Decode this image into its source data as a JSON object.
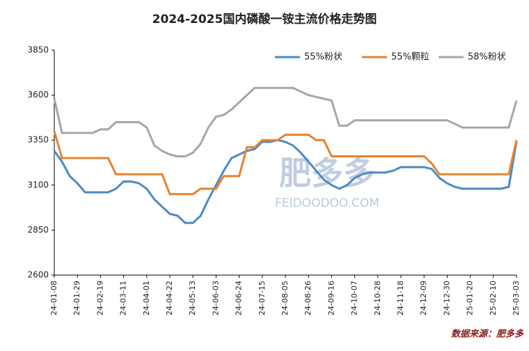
{
  "chart_data": {
    "type": "line",
    "title": "2024-2025国内磷酸一铵主流价格走势图",
    "categories": [
      "24-01-08",
      null,
      null,
      "24-01-29",
      null,
      null,
      "24-02-19",
      null,
      null,
      "24-03-11",
      null,
      null,
      "24-04-01",
      null,
      null,
      "24-04-22",
      null,
      null,
      "24-05-13",
      null,
      null,
      "24-06-03",
      null,
      null,
      "24-06-24",
      null,
      null,
      "24-07-15",
      null,
      null,
      "24-08-05",
      null,
      null,
      "24-08-26",
      null,
      null,
      "24-09-16",
      null,
      null,
      "24-10-07",
      null,
      null,
      "24-10-28",
      null,
      null,
      "24-11-18",
      null,
      null,
      "24-12-09",
      null,
      null,
      "24-12-30",
      null,
      null,
      "25-01-20",
      null,
      null,
      "25-02-10",
      null,
      null,
      "25-03-03"
    ],
    "series": [
      {
        "name": "55%粉状",
        "color": "#4a8ac4",
        "values": [
          3290,
          3230,
          3150,
          3110,
          3060,
          3060,
          3060,
          3060,
          3080,
          3120,
          3120,
          3110,
          3080,
          3020,
          2980,
          2940,
          2930,
          2890,
          2890,
          2930,
          3020,
          3100,
          3180,
          3250,
          3270,
          3290,
          3300,
          3340,
          3340,
          3350,
          3340,
          3320,
          3280,
          3230,
          3180,
          3130,
          3100,
          3080,
          3100,
          3140,
          3160,
          3170,
          3170,
          3170,
          3180,
          3200,
          3200,
          3200,
          3200,
          3190,
          3140,
          3110,
          3090,
          3080,
          3080,
          3080,
          3080,
          3080,
          3080,
          3090,
          3340
        ]
      },
      {
        "name": "55%颗粒",
        "color": "#e8822e",
        "values": [
          3400,
          3250,
          3250,
          3250,
          3250,
          3250,
          3250,
          3250,
          3160,
          3160,
          3160,
          3160,
          3160,
          3160,
          3160,
          3050,
          3050,
          3050,
          3050,
          3080,
          3080,
          3080,
          3150,
          3150,
          3150,
          3310,
          3310,
          3350,
          3350,
          3350,
          3380,
          3380,
          3380,
          3380,
          3350,
          3350,
          3260,
          3260,
          3260,
          3260,
          3260,
          3260,
          3260,
          3260,
          3260,
          3260,
          3260,
          3260,
          3260,
          3220,
          3160,
          3160,
          3160,
          3160,
          3160,
          3160,
          3160,
          3160,
          3160,
          3160,
          3350
        ]
      },
      {
        "name": "58%粉状",
        "color": "#a6a6a6",
        "values": [
          3580,
          3390,
          3390,
          3390,
          3390,
          3390,
          3410,
          3410,
          3450,
          3450,
          3450,
          3450,
          3420,
          3320,
          3290,
          3270,
          3260,
          3260,
          3280,
          3330,
          3420,
          3480,
          3490,
          3520,
          3560,
          3600,
          3640,
          3640,
          3640,
          3640,
          3640,
          3640,
          3620,
          3600,
          3590,
          3580,
          3570,
          3430,
          3430,
          3460,
          3460,
          3460,
          3460,
          3460,
          3460,
          3460,
          3460,
          3460,
          3460,
          3460,
          3460,
          3460,
          3440,
          3420,
          3420,
          3420,
          3420,
          3420,
          3420,
          3420,
          3570
        ]
      }
    ],
    "ylim": [
      2600,
      3850
    ],
    "yticks": [
      2600,
      2850,
      3100,
      3350,
      3600,
      3850
    ],
    "legend": "upper right",
    "source": "数据来源：肥多多",
    "watermark": [
      "肥多多",
      "FEIDOODOO.COM"
    ]
  }
}
